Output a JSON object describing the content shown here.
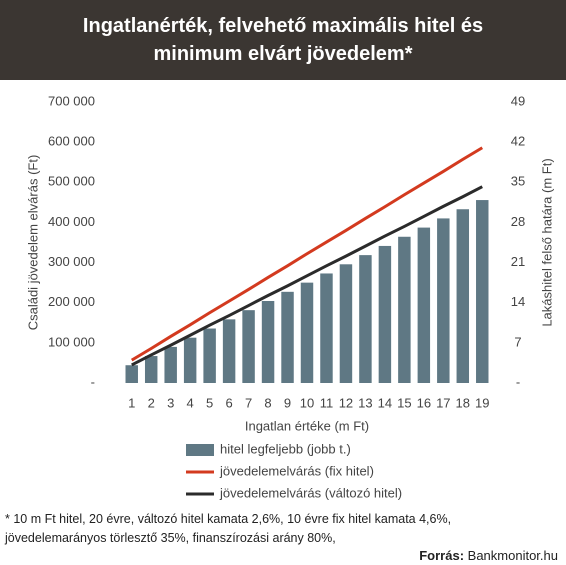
{
  "chart_data": {
    "type": "bar-line",
    "title": "Ingatlanérték, felvehető maximális hitel és minimum elvárt jövedelem*",
    "x_label": "Ingatlan értéke (m Ft)",
    "y_label": "Családi jövedelem elvárás (Ft)",
    "y2_label": "Lakáshitel felső határa (m Ft)",
    "categories": [
      "1",
      "2",
      "3",
      "4",
      "5",
      "6",
      "7",
      "8",
      "9",
      "10",
      "11",
      "12",
      "13",
      "14",
      "15",
      "16",
      "17",
      "18",
      "19"
    ],
    "series": [
      {
        "name": "hitel legfeljebb (jobb t.)",
        "type": "bar",
        "axis": "y2",
        "color": "#5f7884",
        "values": [
          3.1,
          4.7,
          6.3,
          7.9,
          9.5,
          11.1,
          12.7,
          14.3,
          15.9,
          17.5,
          19.1,
          20.7,
          22.3,
          23.9,
          25.5,
          27.1,
          28.7,
          30.3,
          31.9
        ]
      },
      {
        "name": "jövedelemelvárás (fix hitel)",
        "type": "line",
        "color": "#d33a1f",
        "values": [
          57000,
          86000,
          116000,
          145000,
          175000,
          204000,
          233000,
          263000,
          292000,
          322000,
          351000,
          380000,
          410000,
          439000,
          469000,
          498000,
          527000,
          557000,
          586000
        ]
      },
      {
        "name": "jövedelemelvárás (változó hitel)",
        "type": "line",
        "color": "#2b2b2b",
        "values": [
          45000,
          70000,
          94000,
          119000,
          144000,
          168000,
          193000,
          218000,
          242000,
          267000,
          292000,
          316000,
          341000,
          366000,
          390000,
          415000,
          440000,
          464000,
          489000
        ]
      }
    ],
    "ylim": [
      0,
      700000
    ],
    "yticks": [
      {
        "value": 0,
        "label": "-"
      },
      {
        "value": 100000,
        "label": "100 000"
      },
      {
        "value": 200000,
        "label": "200 000"
      },
      {
        "value": 300000,
        "label": "300 000"
      },
      {
        "value": 400000,
        "label": "400 000"
      },
      {
        "value": 500000,
        "label": "500 000"
      },
      {
        "value": 600000,
        "label": "600 000"
      },
      {
        "value": 700000,
        "label": "700 000"
      }
    ],
    "y2lim": [
      0,
      49
    ],
    "y2ticks": [
      {
        "value": 0,
        "label": "-"
      },
      7,
      14,
      21,
      28,
      35,
      42,
      49
    ],
    "footnote": [
      "* 10 m Ft hitel, 20 évre, változó hitel kamata 2,6%, 10 évre fix hitel kamata 4,6%,",
      "jövedelemarányos törlesztő 35%, finanszírozási arány 80%,"
    ],
    "source_label": "Forrás:",
    "source": "Bankmonitor.hu"
  }
}
